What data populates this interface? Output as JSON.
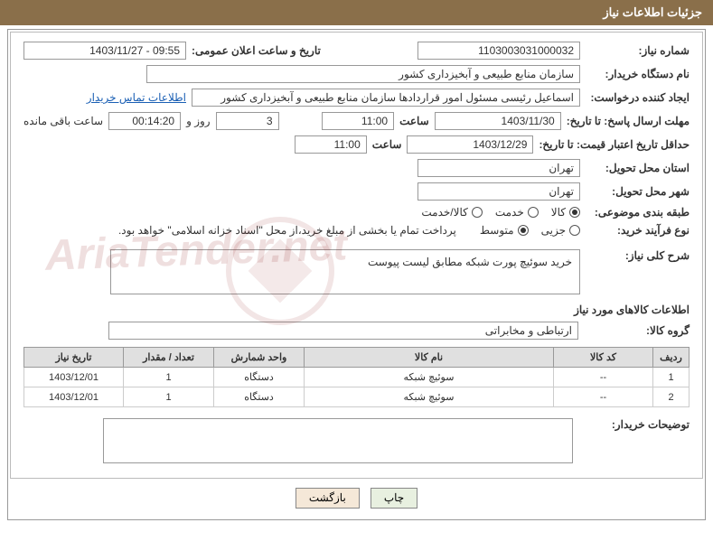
{
  "header": {
    "title": "جزئیات اطلاعات نیاز"
  },
  "fields": {
    "need_number_label": "شماره نیاز:",
    "need_number_value": "1103003031000032",
    "announce_date_label": "تاریخ و ساعت اعلان عمومی:",
    "announce_date_value": "09:55 - 1403/11/27",
    "buyer_org_label": "نام دستگاه خریدار:",
    "buyer_org_value": "سازمان منابع طبیعی و آبخیزداری کشور",
    "requester_label": "ایجاد کننده درخواست:",
    "requester_value": "اسماعیل رئیسی مسئول امور قراردادها سازمان منابع طبیعی و آبخیزداری کشور",
    "contact_link": "اطلاعات تماس خریدار",
    "deadline_label": "مهلت ارسال پاسخ: تا تاریخ:",
    "deadline_date": "1403/11/30",
    "time_label": "ساعت",
    "deadline_time": "11:00",
    "days_and": "روز و",
    "days_value": "3",
    "countdown": "00:14:20",
    "remaining_label": "ساعت باقی مانده",
    "validity_label": "حداقل تاریخ اعتبار قیمت: تا تاریخ:",
    "validity_date": "1403/12/29",
    "validity_time": "11:00",
    "province_label": "استان محل تحویل:",
    "province_value": "تهران",
    "city_label": "شهر محل تحویل:",
    "city_value": "تهران",
    "category_label": "طبقه بندی موضوعی:",
    "cat_goods": "کالا",
    "cat_service": "خدمت",
    "cat_goods_service": "کالا/خدمت",
    "purchase_type_label": "نوع فرآیند خرید:",
    "pt_partial": "جزیی",
    "pt_medium": "متوسط",
    "payment_note": "پرداخت تمام یا بخشی از مبلغ خرید،از محل \"اسناد خزانه اسلامی\" خواهد بود.",
    "desc_label": "شرح کلی نیاز:",
    "desc_value": "خرید سوئیچ پورت شبکه مطابق لیست پیوست",
    "goods_info_title": "اطلاعات کالاهای مورد نیاز",
    "group_label": "گروه کالا:",
    "group_value": "ارتباطی و مخابراتی",
    "buyer_notes_label": "توضیحات خریدار:"
  },
  "table": {
    "columns": [
      "ردیف",
      "کد کالا",
      "نام کالا",
      "واحد شمارش",
      "تعداد / مقدار",
      "تاریخ نیاز"
    ],
    "rows": [
      [
        "1",
        "--",
        "سوئیچ شبکه",
        "دستگاه",
        "1",
        "1403/12/01"
      ],
      [
        "2",
        "--",
        "سوئیچ شبکه",
        "دستگاه",
        "1",
        "1403/12/01"
      ]
    ],
    "col_widths": [
      "40px",
      "110px",
      "auto",
      "100px",
      "100px",
      "110px"
    ]
  },
  "buttons": {
    "print": "چاپ",
    "back": "بازگشت"
  },
  "watermark": "AriaTender.net",
  "colors": {
    "header_bg": "#8a6f4a",
    "header_fg": "#ffffff",
    "border": "#999999",
    "th_bg": "#e0e0e0",
    "link": "#1a5fb4"
  }
}
